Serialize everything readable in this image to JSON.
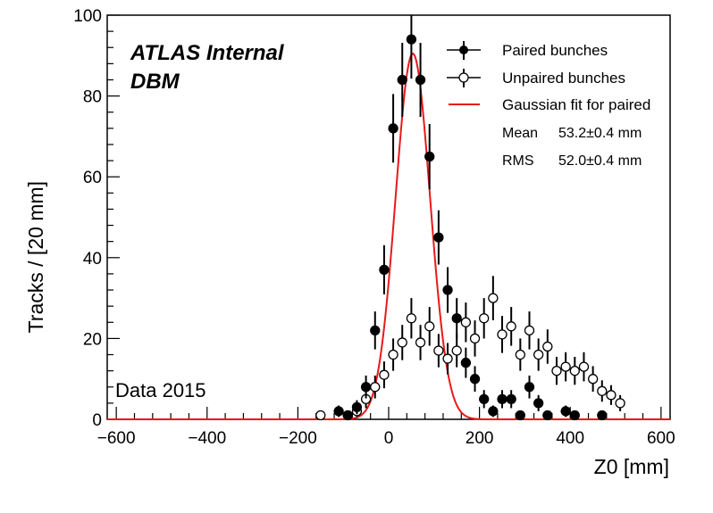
{
  "chart_data": {
    "type": "scatter",
    "xlabel": "Z0 [mm]",
    "ylabel": "Tracks / [20 mm]",
    "xlim": [
      -620,
      620
    ],
    "ylim": [
      0,
      100
    ],
    "x_ticks": [
      "−600",
      "−400",
      "−200",
      "0",
      "200",
      "400",
      "600"
    ],
    "y_ticks": [
      "0",
      "20",
      "40",
      "60",
      "80",
      "100"
    ],
    "experiment_label": "ATLAS Internal",
    "detector_label": "DBM",
    "dataset_label": "Data 2015",
    "series": [
      {
        "name": "Paired bunches",
        "marker": "filled-circle",
        "color": "#000000",
        "points": [
          {
            "x": -110,
            "y": 2
          },
          {
            "x": -90,
            "y": 1
          },
          {
            "x": -70,
            "y": 3
          },
          {
            "x": -50,
            "y": 8
          },
          {
            "x": -30,
            "y": 22
          },
          {
            "x": -10,
            "y": 37
          },
          {
            "x": 10,
            "y": 72
          },
          {
            "x": 30,
            "y": 84
          },
          {
            "x": 50,
            "y": 94
          },
          {
            "x": 70,
            "y": 84
          },
          {
            "x": 90,
            "y": 65
          },
          {
            "x": 110,
            "y": 45
          },
          {
            "x": 130,
            "y": 32
          },
          {
            "x": 150,
            "y": 25
          },
          {
            "x": 170,
            "y": 14
          },
          {
            "x": 190,
            "y": 10
          },
          {
            "x": 210,
            "y": 5
          },
          {
            "x": 230,
            "y": 2
          },
          {
            "x": 250,
            "y": 5
          },
          {
            "x": 270,
            "y": 5
          },
          {
            "x": 290,
            "y": 1
          },
          {
            "x": 310,
            "y": 8
          },
          {
            "x": 330,
            "y": 4
          },
          {
            "x": 350,
            "y": 1
          },
          {
            "x": 390,
            "y": 2
          },
          {
            "x": 410,
            "y": 1
          },
          {
            "x": 470,
            "y": 1
          }
        ]
      },
      {
        "name": "Unpaired bunches",
        "marker": "open-circle",
        "color": "#000000",
        "points": [
          {
            "x": -150,
            "y": 1
          },
          {
            "x": -90,
            "y": 1
          },
          {
            "x": -70,
            "y": 2
          },
          {
            "x": -50,
            "y": 5
          },
          {
            "x": -30,
            "y": 8
          },
          {
            "x": -10,
            "y": 11
          },
          {
            "x": 10,
            "y": 16
          },
          {
            "x": 30,
            "y": 19
          },
          {
            "x": 50,
            "y": 25
          },
          {
            "x": 70,
            "y": 19
          },
          {
            "x": 90,
            "y": 23
          },
          {
            "x": 110,
            "y": 17
          },
          {
            "x": 130,
            "y": 15
          },
          {
            "x": 150,
            "y": 17
          },
          {
            "x": 170,
            "y": 24
          },
          {
            "x": 190,
            "y": 20
          },
          {
            "x": 210,
            "y": 25
          },
          {
            "x": 230,
            "y": 30
          },
          {
            "x": 250,
            "y": 21
          },
          {
            "x": 270,
            "y": 23
          },
          {
            "x": 290,
            "y": 16
          },
          {
            "x": 310,
            "y": 22
          },
          {
            "x": 330,
            "y": 16
          },
          {
            "x": 350,
            "y": 18
          },
          {
            "x": 370,
            "y": 12
          },
          {
            "x": 390,
            "y": 13
          },
          {
            "x": 410,
            "y": 12
          },
          {
            "x": 430,
            "y": 13
          },
          {
            "x": 450,
            "y": 10
          },
          {
            "x": 470,
            "y": 7
          },
          {
            "x": 490,
            "y": 6
          },
          {
            "x": 510,
            "y": 4
          }
        ]
      },
      {
        "name": "Gaussian fit for paired",
        "type": "line",
        "color": "#e8191b",
        "mean": 53.2,
        "sigma": 38,
        "amplitude": 90.5
      }
    ],
    "stats": [
      {
        "label": "Mean",
        "value": "53.2±0.4 mm"
      },
      {
        "label": "RMS",
        "value": "52.0±0.4 mm"
      }
    ]
  }
}
